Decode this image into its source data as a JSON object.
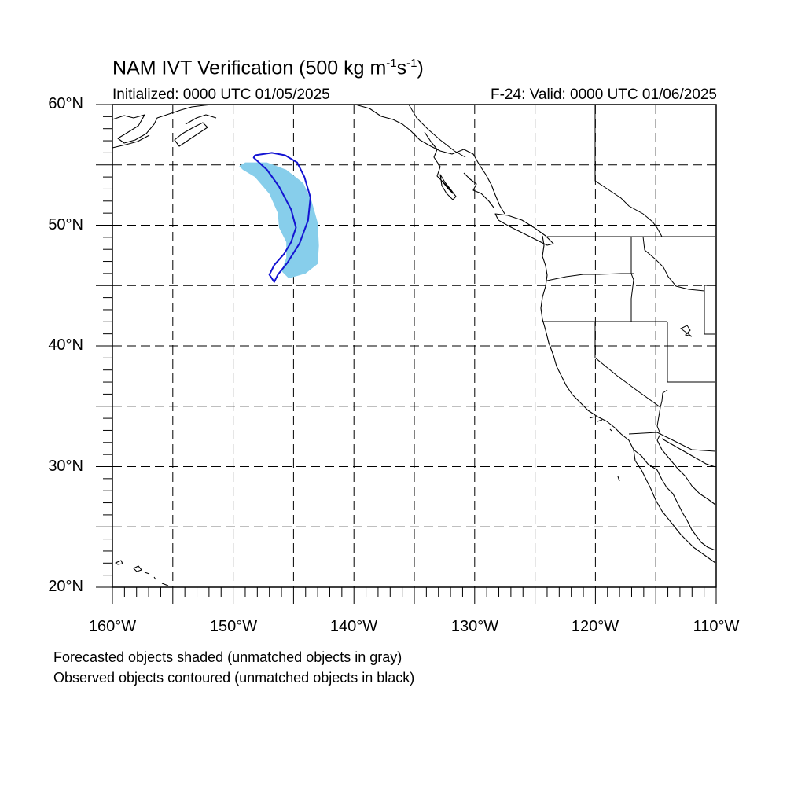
{
  "title": {
    "main": "NAM IVT Verification (500 kg m",
    "exp1": "-1",
    "mid": "s",
    "exp2": "-1",
    "close": ")"
  },
  "subtitle_left": "Initialized: 0000 UTC 01/05/2025",
  "subtitle_right": "F-24: Valid: 0000 UTC 01/06/2025",
  "lat_labels": [
    "60°N",
    "50°N",
    "40°N",
    "30°N",
    "20°N"
  ],
  "lon_labels": [
    "160°W",
    "150°W",
    "140°W",
    "130°W",
    "120°W",
    "110°W"
  ],
  "notes": [
    "Forecasted objects shaded (unmatched objects in gray)",
    "Observed objects contoured (unmatched objects in black)"
  ],
  "map": {
    "lat_range": [
      20,
      60
    ],
    "lon_range": [
      -160,
      -110
    ],
    "grid_spacing_deg": 5,
    "colors": {
      "forecast_fill": "#87ceeb",
      "observed_contour": "#1414d2",
      "coastline": "#000000",
      "grid": "#000000"
    },
    "forecast_object": {
      "matched": true,
      "outline_lonlat": [
        [
          -149.0,
          55.2
        ],
        [
          -147.2,
          55.2
        ],
        [
          -145.6,
          54.6
        ],
        [
          -144.2,
          53.5
        ],
        [
          -143.5,
          52.0
        ],
        [
          -143.0,
          50.2
        ],
        [
          -142.9,
          48.3
        ],
        [
          -143.0,
          46.8
        ],
        [
          -144.0,
          46.0
        ],
        [
          -145.4,
          45.6
        ],
        [
          -146.0,
          46.2
        ],
        [
          -145.6,
          47.3
        ],
        [
          -145.6,
          48.6
        ],
        [
          -146.2,
          49.8
        ],
        [
          -146.3,
          51.0
        ],
        [
          -147.0,
          52.6
        ],
        [
          -148.2,
          54.0
        ],
        [
          -149.2,
          54.6
        ],
        [
          -149.5,
          54.9
        ]
      ]
    },
    "observed_object": {
      "matched": true,
      "outline_lonlat": [
        [
          -148.2,
          55.8
        ],
        [
          -146.8,
          56.0
        ],
        [
          -145.7,
          55.8
        ],
        [
          -144.7,
          55.2
        ],
        [
          -144.1,
          54.0
        ],
        [
          -143.6,
          52.3
        ],
        [
          -143.8,
          50.4
        ],
        [
          -144.5,
          48.5
        ],
        [
          -145.5,
          46.9
        ],
        [
          -146.3,
          45.9
        ],
        [
          -146.6,
          45.3
        ],
        [
          -147.0,
          45.9
        ],
        [
          -146.6,
          46.7
        ],
        [
          -145.8,
          47.6
        ],
        [
          -145.2,
          48.6
        ],
        [
          -144.8,
          49.8
        ],
        [
          -145.2,
          51.3
        ],
        [
          -146.2,
          53.2
        ],
        [
          -147.2,
          54.6
        ],
        [
          -148.3,
          55.6
        ],
        [
          -148.2,
          55.8
        ]
      ]
    }
  }
}
